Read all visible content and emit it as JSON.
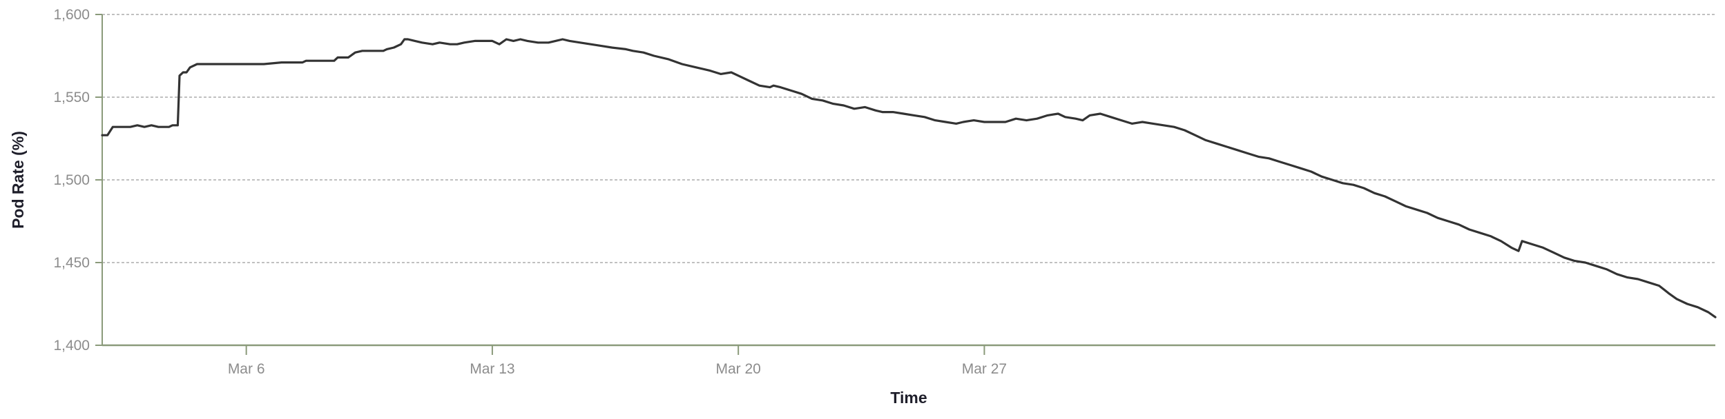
{
  "chart_data": {
    "type": "line",
    "title": "",
    "xlabel": "Time",
    "ylabel": "Pod Rate (%)",
    "x_axis_type": "date",
    "xlim": [
      "Mar 1",
      "Apr 5"
    ],
    "ylim": [
      1400,
      1600
    ],
    "x_tick_labels": [
      "Mar 6",
      "Mar 13",
      "Mar 20",
      "Mar 27"
    ],
    "x_tick_days": [
      6,
      13,
      20,
      27
    ],
    "y_ticks": [
      1400,
      1450,
      1500,
      1550,
      1600
    ],
    "y_tick_labels": [
      "1,400",
      "1,450",
      "1,500",
      "1,550",
      "1,600"
    ],
    "grid": {
      "horizontal": true,
      "vertical": false,
      "style": "dashed"
    },
    "legend": "none",
    "colors": {
      "line": "#333333",
      "axis": "#8a9a7a",
      "grid": "#9a9a9a",
      "tick_text": "#8c8c8c",
      "title_text": "#1e1e2a"
    },
    "series": [
      {
        "values": [
          [
            1.9,
            1527
          ],
          [
            2.05,
            1527
          ],
          [
            2.2,
            1532
          ],
          [
            2.5,
            1532
          ],
          [
            2.7,
            1532
          ],
          [
            2.9,
            1533
          ],
          [
            3.1,
            1532
          ],
          [
            3.3,
            1533
          ],
          [
            3.5,
            1532
          ],
          [
            3.8,
            1532
          ],
          [
            3.9,
            1533
          ],
          [
            4.05,
            1533
          ],
          [
            4.1,
            1563
          ],
          [
            4.2,
            1565
          ],
          [
            4.3,
            1565
          ],
          [
            4.4,
            1568
          ],
          [
            4.6,
            1570
          ],
          [
            5.0,
            1570
          ],
          [
            5.5,
            1570
          ],
          [
            6.0,
            1570
          ],
          [
            6.5,
            1570
          ],
          [
            7.0,
            1571
          ],
          [
            7.6,
            1571
          ],
          [
            7.7,
            1572
          ],
          [
            8.5,
            1572
          ],
          [
            8.6,
            1574
          ],
          [
            8.9,
            1574
          ],
          [
            9.1,
            1577
          ],
          [
            9.3,
            1578
          ],
          [
            9.5,
            1578
          ],
          [
            9.7,
            1578
          ],
          [
            9.9,
            1578
          ],
          [
            10.0,
            1579
          ],
          [
            10.2,
            1580
          ],
          [
            10.4,
            1582
          ],
          [
            10.5,
            1585
          ],
          [
            10.6,
            1585
          ],
          [
            10.8,
            1584
          ],
          [
            11.0,
            1583
          ],
          [
            11.3,
            1582
          ],
          [
            11.5,
            1583
          ],
          [
            11.8,
            1582
          ],
          [
            12.0,
            1582
          ],
          [
            12.2,
            1583
          ],
          [
            12.5,
            1584
          ],
          [
            12.8,
            1584
          ],
          [
            13.0,
            1584
          ],
          [
            13.2,
            1582
          ],
          [
            13.4,
            1585
          ],
          [
            13.6,
            1584
          ],
          [
            13.8,
            1585
          ],
          [
            14.0,
            1584
          ],
          [
            14.3,
            1583
          ],
          [
            14.6,
            1583
          ],
          [
            14.8,
            1584
          ],
          [
            15.0,
            1585
          ],
          [
            15.2,
            1584
          ],
          [
            15.5,
            1583
          ],
          [
            15.8,
            1582
          ],
          [
            16.1,
            1581
          ],
          [
            16.4,
            1580
          ],
          [
            16.8,
            1579
          ],
          [
            17.0,
            1578
          ],
          [
            17.3,
            1577
          ],
          [
            17.6,
            1575
          ],
          [
            18.0,
            1573
          ],
          [
            18.4,
            1570
          ],
          [
            18.8,
            1568
          ],
          [
            19.2,
            1566
          ],
          [
            19.5,
            1564
          ],
          [
            19.8,
            1565
          ],
          [
            20.0,
            1563
          ],
          [
            20.3,
            1560
          ],
          [
            20.6,
            1557
          ],
          [
            20.9,
            1556
          ],
          [
            21.0,
            1557
          ],
          [
            21.2,
            1556
          ],
          [
            21.5,
            1554
          ],
          [
            21.8,
            1552
          ],
          [
            22.1,
            1549
          ],
          [
            22.4,
            1548
          ],
          [
            22.7,
            1546
          ],
          [
            23.0,
            1545
          ],
          [
            23.3,
            1543
          ],
          [
            23.6,
            1544
          ],
          [
            23.9,
            1542
          ],
          [
            24.1,
            1541
          ],
          [
            24.4,
            1541
          ],
          [
            24.7,
            1540
          ],
          [
            25.0,
            1539
          ],
          [
            25.3,
            1538
          ],
          [
            25.6,
            1536
          ],
          [
            25.9,
            1535
          ],
          [
            26.2,
            1534
          ],
          [
            26.4,
            1535
          ],
          [
            26.7,
            1536
          ],
          [
            27.0,
            1535
          ],
          [
            27.3,
            1535
          ],
          [
            27.6,
            1535
          ],
          [
            27.9,
            1537
          ],
          [
            28.2,
            1536
          ],
          [
            28.5,
            1537
          ],
          [
            28.8,
            1539
          ],
          [
            29.1,
            1540
          ],
          [
            29.3,
            1538
          ],
          [
            29.6,
            1537
          ],
          [
            29.8,
            1536
          ],
          [
            30.0,
            1539
          ],
          [
            30.3,
            1540
          ],
          [
            30.6,
            1538
          ],
          [
            30.9,
            1536
          ],
          [
            31.2,
            1534
          ],
          [
            31.5,
            1535
          ],
          [
            31.8,
            1534
          ],
          [
            32.1,
            1533
          ],
          [
            32.4,
            1532
          ],
          [
            32.7,
            1530
          ],
          [
            33.0,
            1527
          ],
          [
            33.3,
            1524
          ],
          [
            33.6,
            1522
          ],
          [
            33.9,
            1520
          ],
          [
            34.2,
            1518
          ],
          [
            34.5,
            1516
          ],
          [
            34.8,
            1514
          ],
          [
            35.1,
            1513
          ],
          [
            35.4,
            1511
          ],
          [
            35.7,
            1509
          ],
          [
            36.0,
            1507
          ],
          [
            36.3,
            1505
          ],
          [
            36.6,
            1502
          ],
          [
            36.9,
            1500
          ],
          [
            37.2,
            1498
          ],
          [
            37.5,
            1497
          ],
          [
            37.8,
            1495
          ],
          [
            38.1,
            1492
          ],
          [
            38.4,
            1490
          ],
          [
            38.7,
            1487
          ],
          [
            39.0,
            1484
          ],
          [
            39.3,
            1482
          ],
          [
            39.6,
            1480
          ],
          [
            39.9,
            1477
          ],
          [
            40.2,
            1475
          ],
          [
            40.5,
            1473
          ],
          [
            40.8,
            1470
          ],
          [
            41.1,
            1468
          ],
          [
            41.4,
            1466
          ],
          [
            41.7,
            1463
          ],
          [
            42.0,
            1459
          ],
          [
            42.2,
            1457
          ],
          [
            42.3,
            1463
          ],
          [
            42.6,
            1461
          ],
          [
            42.9,
            1459
          ],
          [
            43.2,
            1456
          ],
          [
            43.5,
            1453
          ],
          [
            43.8,
            1451
          ],
          [
            44.1,
            1450
          ],
          [
            44.4,
            1448
          ],
          [
            44.7,
            1446
          ],
          [
            45.0,
            1443
          ],
          [
            45.3,
            1441
          ],
          [
            45.6,
            1440
          ],
          [
            45.9,
            1438
          ],
          [
            46.2,
            1436
          ],
          [
            46.5,
            1431
          ],
          [
            46.7,
            1428
          ],
          [
            47.0,
            1425
          ],
          [
            47.3,
            1423
          ],
          [
            47.6,
            1420
          ],
          [
            47.8,
            1417
          ]
        ]
      }
    ]
  }
}
